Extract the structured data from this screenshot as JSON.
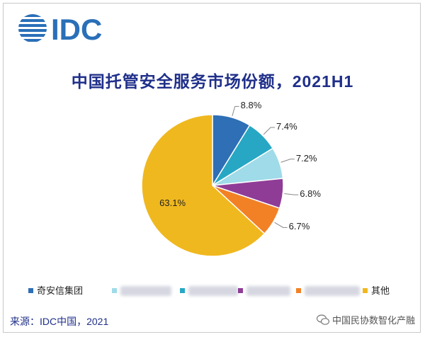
{
  "logo": {
    "text": "IDC",
    "color": "#2a6fb8"
  },
  "chart_data": {
    "type": "pie",
    "title": "中国托管安全服务市场份额，2021H1",
    "slices": [
      {
        "label": "奇安信集团",
        "value": 8.8,
        "display": "8.8%",
        "color": "#2e6fb6"
      },
      {
        "label": "",
        "value": 7.4,
        "display": "7.4%",
        "color": "#27a7c4"
      },
      {
        "label": "",
        "value": 7.2,
        "display": "7.2%",
        "color": "#9fdbe8"
      },
      {
        "label": "",
        "value": 6.8,
        "display": "6.8%",
        "color": "#8f3c97"
      },
      {
        "label": "",
        "value": 6.7,
        "display": "6.7%",
        "color": "#f28126"
      },
      {
        "label": "其他",
        "value": 63.1,
        "display": "63.1%",
        "color": "#f0b81f"
      }
    ],
    "legend_position": "bottom"
  },
  "legend": {
    "first": "奇安信集团",
    "last": "其他"
  },
  "source": "来源：IDC中国，2021",
  "watermark": "中国民协数智化产融"
}
